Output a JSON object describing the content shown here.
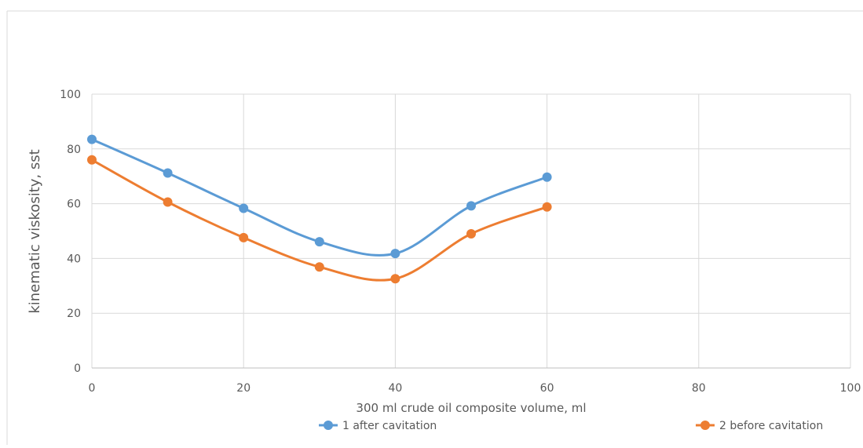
{
  "chart_data": {
    "type": "line",
    "title": "",
    "xlabel": "300 ml crude oil composite volume, ml",
    "ylabel": "kinematic viskosity, sst",
    "xlim": [
      0,
      100
    ],
    "ylim": [
      0,
      100
    ],
    "x_ticks": [
      "0",
      "20",
      "40",
      "60",
      "80",
      "100"
    ],
    "y_ticks": [
      "0",
      "20",
      "40",
      "60",
      "80",
      "100"
    ],
    "x_tick_values": [
      0,
      20,
      40,
      60,
      80,
      100
    ],
    "y_tick_values": [
      0,
      20,
      40,
      60,
      80,
      100
    ],
    "grid": true,
    "legend_position": "bottom",
    "smooth": true,
    "x": [
      0,
      10,
      20,
      30,
      40,
      50,
      60
    ],
    "series": [
      {
        "name": "1 after cavitation",
        "color": "#5B9BD5",
        "values": [
          83.5,
          71.2,
          58.3,
          46.1,
          41.8,
          59.2,
          69.7
        ]
      },
      {
        "name": "2 before cavitation",
        "color": "#ED7D31",
        "values": [
          76.0,
          60.6,
          47.6,
          36.9,
          32.6,
          49.0,
          58.8
        ]
      }
    ]
  }
}
